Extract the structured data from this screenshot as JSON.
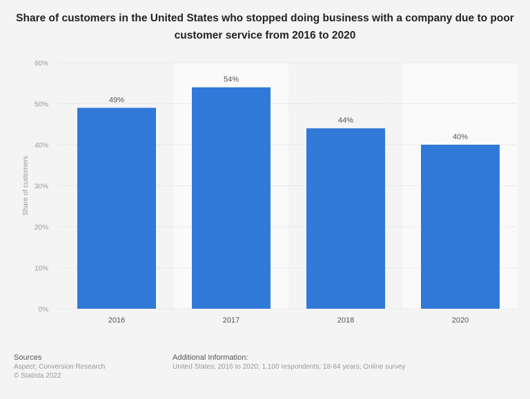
{
  "chart_data": {
    "type": "bar",
    "title": "Share of customers in the United States who stopped doing business with a company due to poor customer service from 2016 to 2020",
    "categories": [
      "2016",
      "2017",
      "2018",
      "2020"
    ],
    "values": [
      49,
      54,
      44,
      40
    ],
    "data_labels": [
      "49%",
      "54%",
      "44%",
      "40%"
    ],
    "xlabel": "",
    "ylabel": "Share of customers",
    "ylim": [
      0,
      60
    ],
    "yticks": [
      "0%",
      "10%",
      "20%",
      "30%",
      "40%",
      "50%",
      "60%"
    ],
    "grid": true,
    "bar_color": "#3079d9"
  },
  "footer": {
    "sources_heading": "Sources",
    "sources_line": "Aspect; Conversion Research",
    "copyright": "© Statista 2022",
    "additional_heading": "Additional Information:",
    "additional_line": "United States; 2016 to 2020; 1,100 respondents; 18-64 years; Online survey"
  }
}
